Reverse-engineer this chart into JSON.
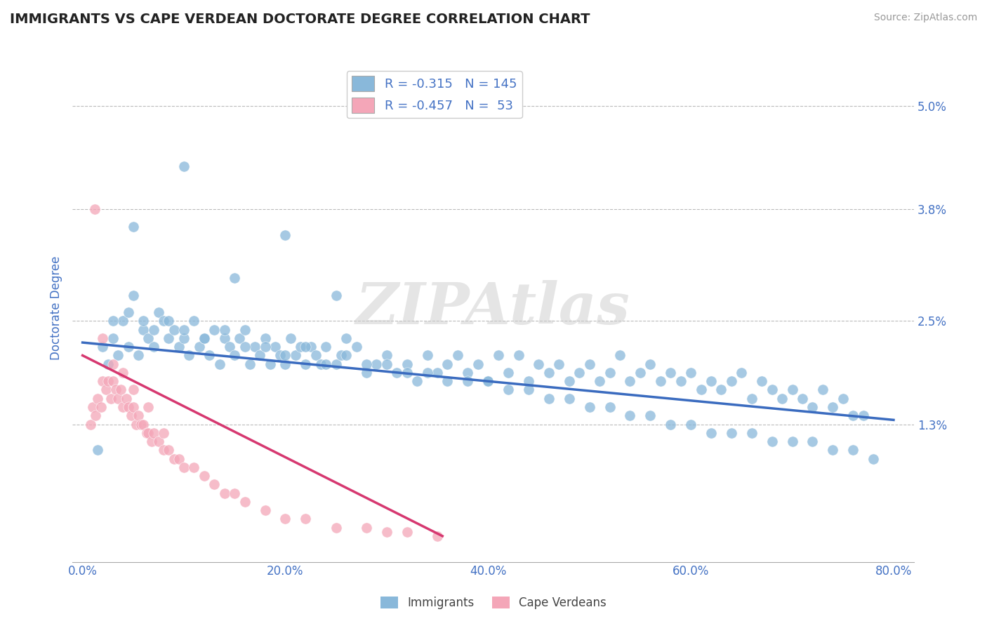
{
  "title": "IMMIGRANTS VS CAPE VERDEAN DOCTORATE DEGREE CORRELATION CHART",
  "source": "Source: ZipAtlas.com",
  "ylabel": "Doctorate Degree",
  "x_tick_labels": [
    "0.0%",
    "20.0%",
    "40.0%",
    "60.0%",
    "80.0%"
  ],
  "x_tick_vals": [
    0.0,
    20.0,
    40.0,
    60.0,
    80.0
  ],
  "y_tick_labels": [
    "1.3%",
    "2.5%",
    "3.8%",
    "5.0%"
  ],
  "y_tick_vals": [
    1.3,
    2.5,
    3.8,
    5.0
  ],
  "xlim": [
    -1.0,
    82.0
  ],
  "ylim": [
    -0.3,
    5.6
  ],
  "legend_r1": "R = -0.315",
  "legend_n1": "N = 145",
  "legend_r2": "R = -0.457",
  "legend_n2": "N =  53",
  "legend_label1": "Immigrants",
  "legend_label2": "Cape Verdeans",
  "dot_color_blue": "#89B8DA",
  "dot_color_pink": "#F4A6B8",
  "line_color_blue": "#3A6BBF",
  "line_color_pink": "#D63870",
  "watermark": "ZIPAtlas",
  "watermark_color": "#DDDDDD",
  "background_color": "#FFFFFF",
  "grid_color": "#BBBBBB",
  "title_color": "#222222",
  "axis_label_color": "#4472C4",
  "tick_label_color": "#4472C4",
  "blue_dots_x": [
    1.5,
    2.0,
    2.5,
    3.0,
    3.5,
    4.0,
    4.5,
    5.0,
    5.5,
    6.0,
    6.5,
    7.0,
    7.5,
    8.0,
    8.5,
    9.0,
    9.5,
    10.0,
    10.5,
    11.0,
    11.5,
    12.0,
    12.5,
    13.0,
    13.5,
    14.0,
    14.5,
    15.0,
    15.5,
    16.0,
    16.5,
    17.0,
    17.5,
    18.0,
    18.5,
    19.0,
    19.5,
    20.0,
    20.5,
    21.0,
    21.5,
    22.0,
    22.5,
    23.0,
    23.5,
    24.0,
    25.0,
    25.5,
    26.0,
    27.0,
    28.0,
    29.0,
    30.0,
    31.0,
    32.0,
    33.0,
    34.0,
    35.0,
    36.0,
    37.0,
    38.0,
    39.0,
    40.0,
    41.0,
    42.0,
    43.0,
    44.0,
    45.0,
    46.0,
    47.0,
    48.0,
    49.0,
    50.0,
    51.0,
    52.0,
    53.0,
    54.0,
    55.0,
    56.0,
    57.0,
    58.0,
    59.0,
    60.0,
    61.0,
    62.0,
    63.0,
    64.0,
    65.0,
    66.0,
    67.0,
    68.0,
    69.0,
    70.0,
    71.0,
    72.0,
    73.0,
    74.0,
    75.0,
    76.0,
    77.0,
    3.0,
    4.5,
    6.0,
    7.0,
    8.5,
    10.0,
    12.0,
    14.0,
    16.0,
    18.0,
    20.0,
    22.0,
    24.0,
    26.0,
    28.0,
    30.0,
    32.0,
    34.0,
    36.0,
    38.0,
    40.0,
    42.0,
    44.0,
    46.0,
    48.0,
    50.0,
    52.0,
    54.0,
    56.0,
    58.0,
    60.0,
    62.0,
    64.0,
    66.0,
    68.0,
    70.0,
    72.0,
    74.0,
    76.0,
    78.0,
    5.0,
    10.0,
    15.0,
    20.0,
    25.0
  ],
  "blue_dots_y": [
    1.0,
    2.2,
    2.0,
    2.3,
    2.1,
    2.5,
    2.2,
    2.8,
    2.1,
    2.4,
    2.3,
    2.2,
    2.6,
    2.5,
    2.3,
    2.4,
    2.2,
    2.3,
    2.1,
    2.5,
    2.2,
    2.3,
    2.1,
    2.4,
    2.0,
    2.3,
    2.2,
    2.1,
    2.3,
    2.4,
    2.0,
    2.2,
    2.1,
    2.3,
    2.0,
    2.2,
    2.1,
    2.0,
    2.3,
    2.1,
    2.2,
    2.0,
    2.2,
    2.1,
    2.0,
    2.2,
    2.0,
    2.1,
    2.3,
    2.2,
    1.9,
    2.0,
    2.1,
    1.9,
    2.0,
    1.8,
    2.1,
    1.9,
    2.0,
    2.1,
    1.9,
    2.0,
    1.8,
    2.1,
    1.9,
    2.1,
    1.8,
    2.0,
    1.9,
    2.0,
    1.8,
    1.9,
    2.0,
    1.8,
    1.9,
    2.1,
    1.8,
    1.9,
    2.0,
    1.8,
    1.9,
    1.8,
    1.9,
    1.7,
    1.8,
    1.7,
    1.8,
    1.9,
    1.6,
    1.8,
    1.7,
    1.6,
    1.7,
    1.6,
    1.5,
    1.7,
    1.5,
    1.6,
    1.4,
    1.4,
    2.5,
    2.6,
    2.5,
    2.4,
    2.5,
    2.4,
    2.3,
    2.4,
    2.2,
    2.2,
    2.1,
    2.2,
    2.0,
    2.1,
    2.0,
    2.0,
    1.9,
    1.9,
    1.8,
    1.8,
    1.8,
    1.7,
    1.7,
    1.6,
    1.6,
    1.5,
    1.5,
    1.4,
    1.4,
    1.3,
    1.3,
    1.2,
    1.2,
    1.2,
    1.1,
    1.1,
    1.1,
    1.0,
    1.0,
    0.9,
    3.6,
    4.3,
    3.0,
    3.5,
    2.8
  ],
  "pink_dots_x": [
    0.8,
    1.0,
    1.3,
    1.5,
    1.8,
    2.0,
    2.3,
    2.5,
    2.8,
    3.0,
    3.3,
    3.5,
    3.8,
    4.0,
    4.3,
    4.5,
    4.8,
    5.0,
    5.3,
    5.5,
    5.8,
    6.0,
    6.3,
    6.5,
    6.8,
    7.0,
    7.5,
    8.0,
    8.5,
    9.0,
    9.5,
    10.0,
    11.0,
    12.0,
    13.0,
    14.0,
    15.0,
    16.0,
    18.0,
    20.0,
    22.0,
    25.0,
    28.0,
    30.0,
    32.0,
    35.0,
    1.2,
    2.0,
    3.0,
    4.0,
    5.0,
    6.5,
    8.0
  ],
  "pink_dots_y": [
    1.3,
    1.5,
    1.4,
    1.6,
    1.5,
    1.8,
    1.7,
    1.8,
    1.6,
    1.8,
    1.7,
    1.6,
    1.7,
    1.5,
    1.6,
    1.5,
    1.4,
    1.5,
    1.3,
    1.4,
    1.3,
    1.3,
    1.2,
    1.2,
    1.1,
    1.2,
    1.1,
    1.0,
    1.0,
    0.9,
    0.9,
    0.8,
    0.8,
    0.7,
    0.6,
    0.5,
    0.5,
    0.4,
    0.3,
    0.2,
    0.2,
    0.1,
    0.1,
    0.05,
    0.05,
    0.0,
    3.8,
    2.3,
    2.0,
    1.9,
    1.7,
    1.5,
    1.2
  ],
  "blue_trend_x": [
    0.0,
    80.0
  ],
  "blue_trend_y_start": 2.25,
  "blue_trend_y_end": 1.35,
  "pink_trend_x": [
    0.0,
    35.5
  ],
  "pink_trend_y_start": 2.1,
  "pink_trend_y_end": 0.0
}
